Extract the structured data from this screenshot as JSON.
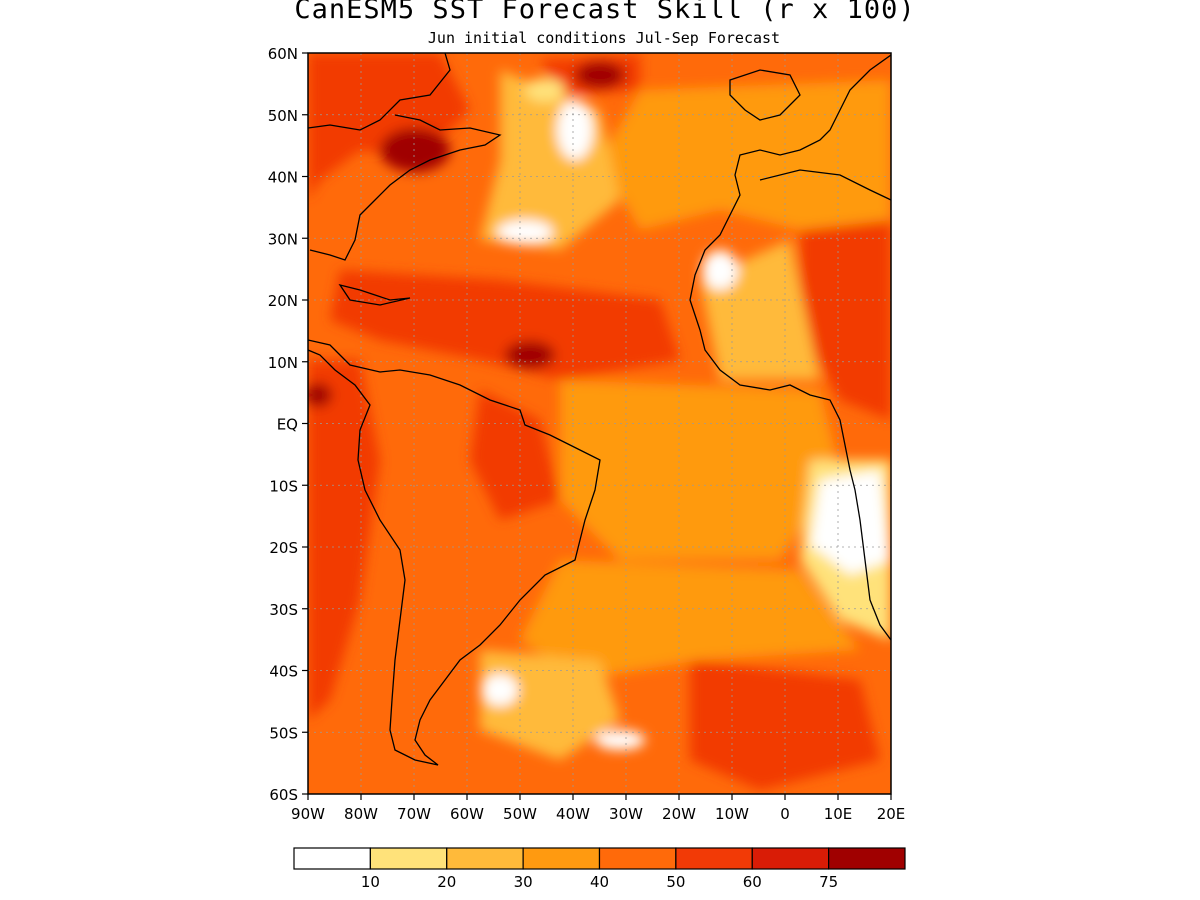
{
  "title": "CanESM5 SST Forecast Skill (r x 100)",
  "subtitle": "Jun initial conditions  Jul-Sep Forecast",
  "map": {
    "lon_range": [
      -90,
      20
    ],
    "lat_range": [
      -60,
      60
    ],
    "lat_ticks": [
      {
        "value": 60,
        "label": "60N"
      },
      {
        "value": 50,
        "label": "50N"
      },
      {
        "value": 40,
        "label": "40N"
      },
      {
        "value": 30,
        "label": "30N"
      },
      {
        "value": 20,
        "label": "20N"
      },
      {
        "value": 10,
        "label": "10N"
      },
      {
        "value": 0,
        "label": "EQ"
      },
      {
        "value": -10,
        "label": "10S"
      },
      {
        "value": -20,
        "label": "20S"
      },
      {
        "value": -30,
        "label": "30S"
      },
      {
        "value": -40,
        "label": "40S"
      },
      {
        "value": -50,
        "label": "50S"
      },
      {
        "value": -60,
        "label": "60S"
      }
    ],
    "lon_ticks": [
      {
        "value": -90,
        "label": "90W"
      },
      {
        "value": -80,
        "label": "80W"
      },
      {
        "value": -70,
        "label": "70W"
      },
      {
        "value": -60,
        "label": "60W"
      },
      {
        "value": -50,
        "label": "50W"
      },
      {
        "value": -40,
        "label": "40W"
      },
      {
        "value": -30,
        "label": "30W"
      },
      {
        "value": -20,
        "label": "20W"
      },
      {
        "value": -10,
        "label": "10W"
      },
      {
        "value": 0,
        "label": "0"
      },
      {
        "value": 10,
        "label": "10E"
      },
      {
        "value": 20,
        "label": "20E"
      }
    ],
    "grid": "dotted"
  },
  "colorbar": {
    "labels": [
      "10",
      "20",
      "30",
      "40",
      "50",
      "60",
      "75"
    ],
    "colors": [
      "#ffffff",
      "#ffe27a",
      "#ffba3a",
      "#ff9a10",
      "#ff6a0a",
      "#f23a06",
      "#d91c06",
      "#a00000"
    ]
  }
}
